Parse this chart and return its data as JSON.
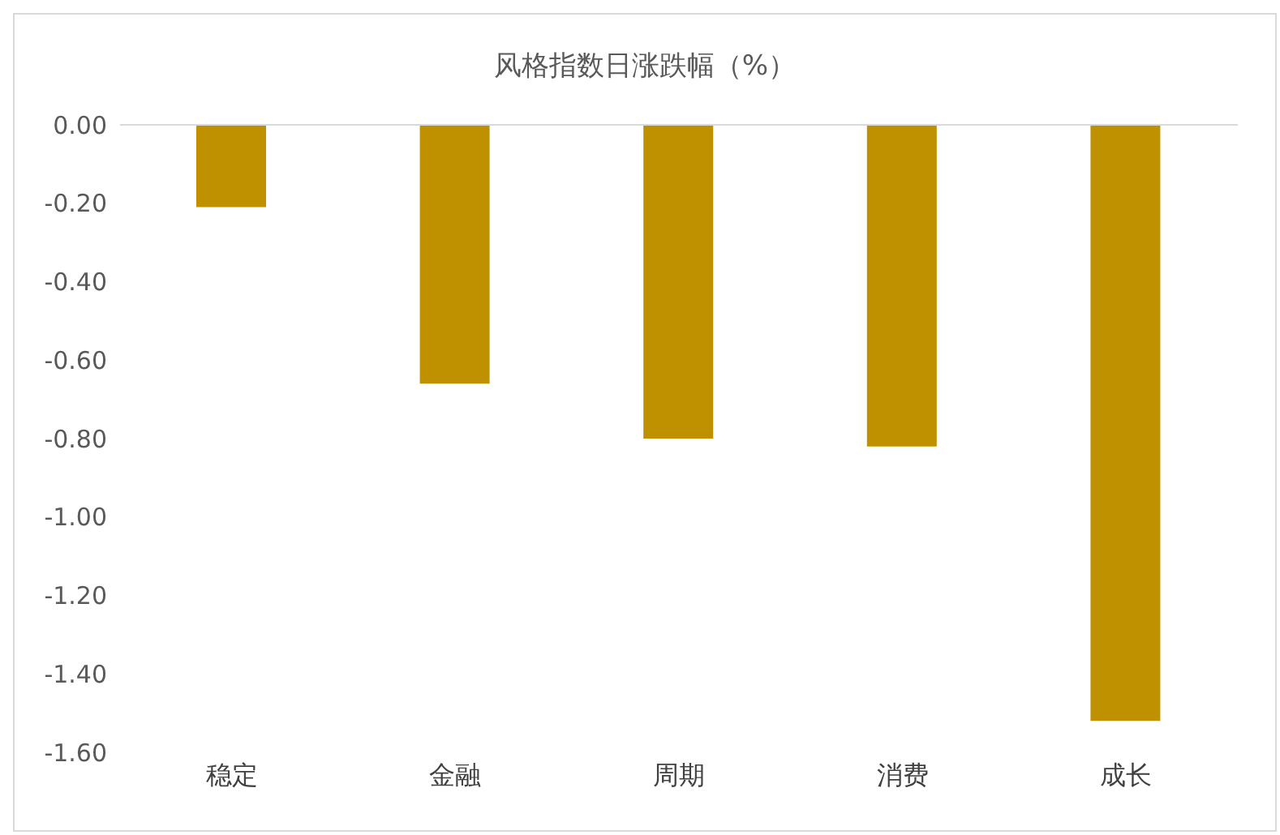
{
  "chart_data": {
    "type": "bar",
    "title": "风格指数日涨跌幅（%）",
    "categories": [
      "稳定",
      "金融",
      "周期",
      "消费",
      "成长"
    ],
    "values": [
      -0.21,
      -0.66,
      -0.8,
      -0.82,
      -1.52
    ],
    "color": "#bf9000",
    "ylim": [
      -1.6,
      0
    ],
    "yticks": [
      {
        "value": -1.6,
        "label": "-1.60"
      },
      {
        "value": -1.4,
        "label": "-1.40"
      },
      {
        "value": -1.2,
        "label": "-1.20"
      },
      {
        "value": -1,
        "label": "-1.00"
      },
      {
        "value": -0.8,
        "label": "-0.80"
      },
      {
        "value": -0.6,
        "label": "-0.60"
      },
      {
        "value": -0.4,
        "label": "-0.40"
      },
      {
        "value": -0.2,
        "label": "-0.20"
      },
      {
        "value": 0,
        "label": "0.00"
      }
    ],
    "grid": false,
    "legend": false
  }
}
